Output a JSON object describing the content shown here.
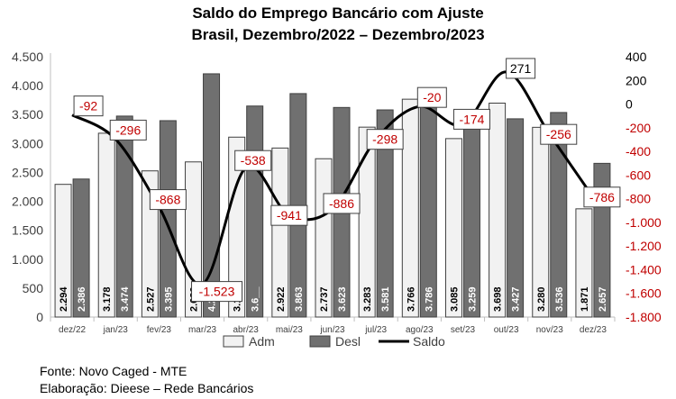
{
  "chart_data": {
    "type": "bar",
    "title": "Saldo do Emprego Bancário com Ajuste",
    "subtitle": "Brasil, Dezembro/2022 – Dezembro/2023",
    "categories": [
      "dez/22",
      "jan/23",
      "fev/23",
      "mar/23",
      "abr/23",
      "mai/23",
      "jun/23",
      "jul/23",
      "ago/23",
      "set/23",
      "out/23",
      "nov/23",
      "dez/23"
    ],
    "series": [
      {
        "name": "Adm",
        "type": "bar",
        "axis": "left",
        "color": "#f2f2f2",
        "values": [
          2294,
          3178,
          2527,
          2682,
          3110,
          2922,
          2737,
          3283,
          3766,
          3085,
          3698,
          3280,
          1871
        ],
        "labels": [
          "2.294",
          "3.178",
          "2.527",
          "2.682",
          "3.1__",
          "2.922",
          "2.737",
          "3.283",
          "3.766",
          "3.085",
          "3.698",
          "3.280",
          "1.871"
        ]
      },
      {
        "name": "Desl",
        "type": "bar",
        "axis": "left",
        "color": "#707070",
        "values": [
          2386,
          3474,
          3395,
          4205,
          3648,
          3863,
          3623,
          3581,
          3786,
          3259,
          3427,
          3536,
          2657
        ],
        "labels": [
          "2.386",
          "3.474",
          "3.395",
          "4.2__",
          "3.6__",
          "3.863",
          "3.623",
          "3.581",
          "3.786",
          "3.259",
          "3.427",
          "3.536",
          "2.657"
        ]
      },
      {
        "name": "Saldo",
        "type": "line",
        "axis": "right",
        "color": "#000000",
        "values": [
          -92,
          -296,
          -868,
          -1523,
          -538,
          -941,
          -886,
          -298,
          -20,
          -174,
          271,
          -256,
          -786
        ],
        "labels": [
          "-92",
          "-296",
          "-868",
          "-1.523",
          "-538",
          "-941",
          "-886",
          "-298",
          "-20",
          "-174",
          "271",
          "-256",
          "-786"
        ]
      }
    ],
    "y_left": {
      "range": [
        0,
        4500
      ],
      "ticks": [
        0,
        500,
        1000,
        1500,
        2000,
        2500,
        3000,
        3500,
        4000,
        4500
      ],
      "tick_labels": [
        "0",
        "500",
        "1.000",
        "1.500",
        "2.000",
        "2.500",
        "3.000",
        "3.500",
        "4.000",
        "4.500"
      ]
    },
    "y_right": {
      "range": [
        -1800,
        400
      ],
      "ticks": [
        400,
        200,
        0,
        -200,
        -400,
        -600,
        -800,
        -1000,
        -1200,
        -1400,
        -1600,
        -1800
      ],
      "tick_labels": [
        "400",
        "200",
        "0",
        "-200",
        "-400",
        "-600",
        "-800",
        "-1.000",
        "-1.200",
        "-1.400",
        "-1.600",
        "-1.800"
      ],
      "tick_colors": [
        "#000000",
        "#000000",
        "#000000",
        "#c00000",
        "#c00000",
        "#c00000",
        "#c00000",
        "#c00000",
        "#c00000",
        "#c00000",
        "#c00000",
        "#c00000"
      ]
    },
    "legend": {
      "position": "bottom",
      "items": [
        "Adm",
        "Desl",
        "Saldo"
      ]
    },
    "negative_label_color": "#c00000",
    "positive_label_color": "#000000",
    "grid": false
  },
  "footer": {
    "source": "Fonte: Novo Caged - MTE",
    "credit": "Elaboração: Dieese – Rede Bancários"
  }
}
